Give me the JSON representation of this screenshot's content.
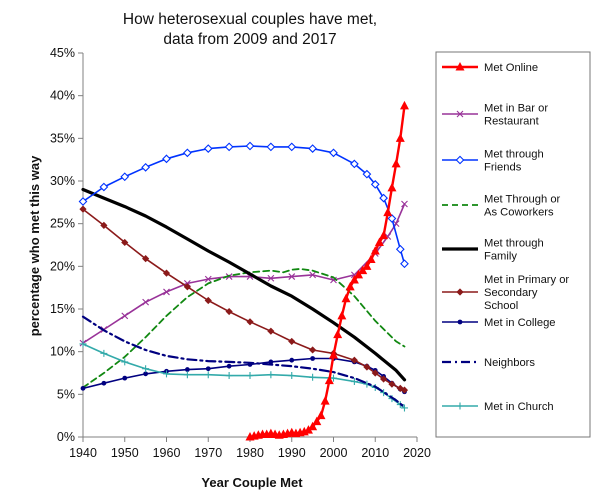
{
  "chart_data": {
    "type": "line",
    "title": "How heterosexual couples have met,",
    "subtitle": "data from 2009 and 2017",
    "xlabel": "Year Couple Met",
    "ylabel": "percentage who met this way",
    "xlim": [
      1940,
      2020
    ],
    "ylim": [
      0,
      45
    ],
    "x_ticks": [
      "1940",
      "1950",
      "1960",
      "1970",
      "1980",
      "1990",
      "2000",
      "2010",
      "2020"
    ],
    "y_ticks": [
      "0%",
      "5%",
      "10%",
      "15%",
      "20%",
      "25%",
      "30%",
      "35%",
      "40%",
      "45%"
    ],
    "grid": false,
    "legend_position": "right",
    "series": [
      {
        "name": "Met Online",
        "color": "#ff0000",
        "marker": "triangle",
        "x": [
          1980,
          1981,
          1982,
          1983,
          1984,
          1985,
          1986,
          1987,
          1988,
          1989,
          1990,
          1991,
          1992,
          1993,
          1994,
          1995,
          1996,
          1997,
          1998,
          1999,
          2000,
          2001,
          2002,
          2003,
          2004,
          2005,
          2006,
          2007,
          2008,
          2009,
          2010,
          2011,
          2012,
          2013,
          2014,
          2015,
          2016,
          2017
        ],
        "y": [
          0,
          0.1,
          0.2,
          0.3,
          0.3,
          0.4,
          0.3,
          0.2,
          0.3,
          0.4,
          0.5,
          0.4,
          0.5,
          0.6,
          0.8,
          1.2,
          1.8,
          2.5,
          4.2,
          6.6,
          9.6,
          12.0,
          14.2,
          16.2,
          17.6,
          18.4,
          19.0,
          19.5,
          20.0,
          20.8,
          21.8,
          22.8,
          23.6,
          26.3,
          29.2,
          32.0,
          35.0,
          38.8
        ]
      },
      {
        "name": "Met in Bar or Restaurant",
        "color": "#993399",
        "marker": "x",
        "x": [
          1940,
          1945,
          1950,
          1955,
          1960,
          1965,
          1970,
          1975,
          1980,
          1985,
          1990,
          1995,
          2000,
          2005,
          2010,
          2013,
          2015,
          2017
        ],
        "y": [
          11.0,
          12.6,
          14.2,
          15.8,
          17.0,
          18.0,
          18.5,
          18.8,
          18.8,
          18.6,
          18.8,
          19.0,
          18.4,
          19.0,
          21.5,
          23.5,
          25.0,
          27.3
        ]
      },
      {
        "name": "Met through Friends",
        "color": "#0033ff",
        "marker": "diamond-open",
        "x": [
          1940,
          1945,
          1950,
          1955,
          1960,
          1965,
          1970,
          1975,
          1980,
          1985,
          1990,
          1995,
          2000,
          2005,
          2008,
          2010,
          2012,
          2014,
          2016,
          2017
        ],
        "y": [
          27.6,
          29.3,
          30.5,
          31.6,
          32.6,
          33.3,
          33.8,
          34.0,
          34.1,
          34.0,
          34.0,
          33.8,
          33.3,
          32.0,
          30.8,
          29.6,
          28.0,
          25.6,
          22.0,
          20.3
        ]
      },
      {
        "name": "Met Through or As Coworkers",
        "color": "#118811",
        "marker": "none",
        "dash": "dash",
        "x": [
          1940,
          1945,
          1950,
          1955,
          1960,
          1965,
          1970,
          1975,
          1980,
          1985,
          1988,
          1990,
          1992,
          1995,
          2000,
          2005,
          2010,
          2015,
          2017
        ],
        "y": [
          5.8,
          7.5,
          9.4,
          11.7,
          14.2,
          16.4,
          18.0,
          18.9,
          19.3,
          19.5,
          19.3,
          19.6,
          19.7,
          19.5,
          18.7,
          16.5,
          13.6,
          11.2,
          10.6
        ]
      },
      {
        "name": "Met through Family",
        "color": "#000000",
        "marker": "none",
        "x": [
          1940,
          1945,
          1950,
          1955,
          1960,
          1965,
          1970,
          1975,
          1980,
          1985,
          1990,
          1995,
          2000,
          2005,
          2010,
          2015,
          2017
        ],
        "y": [
          29.0,
          28.0,
          27.0,
          25.9,
          24.6,
          23.2,
          21.8,
          20.5,
          19.1,
          17.7,
          16.5,
          15.0,
          13.4,
          11.7,
          9.8,
          7.8,
          6.7
        ]
      },
      {
        "name": "Met in Primary or Secondary School",
        "color": "#8b1a1a",
        "marker": "diamond",
        "x": [
          1940,
          1945,
          1950,
          1955,
          1960,
          1965,
          1970,
          1975,
          1980,
          1985,
          1990,
          1995,
          2000,
          2005,
          2008,
          2010,
          2012,
          2014,
          2016,
          2017
        ],
        "y": [
          26.7,
          24.8,
          22.8,
          20.9,
          19.2,
          17.6,
          16.0,
          14.7,
          13.5,
          12.4,
          11.2,
          10.2,
          9.8,
          9.0,
          8.2,
          7.5,
          6.8,
          6.2,
          5.7,
          5.5
        ]
      },
      {
        "name": "Met in College",
        "color": "#000080",
        "marker": "dot",
        "x": [
          1940,
          1945,
          1950,
          1955,
          1960,
          1965,
          1970,
          1975,
          1980,
          1985,
          1990,
          1995,
          2000,
          2005,
          2008,
          2010,
          2012,
          2014,
          2016,
          2017
        ],
        "y": [
          5.7,
          6.3,
          6.9,
          7.4,
          7.7,
          7.9,
          8.0,
          8.3,
          8.5,
          8.8,
          9.0,
          9.2,
          9.2,
          8.8,
          8.3,
          7.8,
          7.1,
          6.3,
          5.6,
          5.3
        ]
      },
      {
        "name": "Neighbors",
        "color": "#000080",
        "marker": "none",
        "dash": "dashdot",
        "x": [
          1940,
          1945,
          1950,
          1955,
          1960,
          1965,
          1970,
          1975,
          1980,
          1985,
          1990,
          1995,
          2000,
          2005,
          2010,
          2015,
          2017
        ],
        "y": [
          14.1,
          12.5,
          11.2,
          10.2,
          9.5,
          9.1,
          8.9,
          8.8,
          8.7,
          8.5,
          8.3,
          8.0,
          7.6,
          6.9,
          5.9,
          4.3,
          3.5
        ]
      },
      {
        "name": "Met in Church",
        "color": "#33aaaa",
        "marker": "plus",
        "x": [
          1940,
          1945,
          1950,
          1955,
          1960,
          1965,
          1970,
          1975,
          1980,
          1985,
          1990,
          1995,
          2000,
          2005,
          2008,
          2010,
          2012,
          2014,
          2016,
          2017
        ],
        "y": [
          10.9,
          9.8,
          8.8,
          8.0,
          7.4,
          7.3,
          7.3,
          7.2,
          7.2,
          7.3,
          7.2,
          7.0,
          6.9,
          6.5,
          6.2,
          5.8,
          5.2,
          4.5,
          3.8,
          3.4
        ]
      }
    ],
    "legend": [
      {
        "lines": [
          "Met Online"
        ]
      },
      {
        "lines": [
          "Met in Bar or",
          "Restaurant"
        ]
      },
      {
        "lines": [
          "Met through",
          "Friends"
        ]
      },
      {
        "lines": [
          "Met Through or",
          "As Coworkers"
        ]
      },
      {
        "lines": [
          "Met through",
          "Family"
        ]
      },
      {
        "lines": [
          "Met in Primary or",
          "Secondary",
          "School"
        ]
      },
      {
        "lines": [
          "Met in College"
        ]
      },
      {
        "lines": [
          "Neighbors"
        ]
      },
      {
        "lines": [
          "Met in Church"
        ]
      }
    ]
  }
}
